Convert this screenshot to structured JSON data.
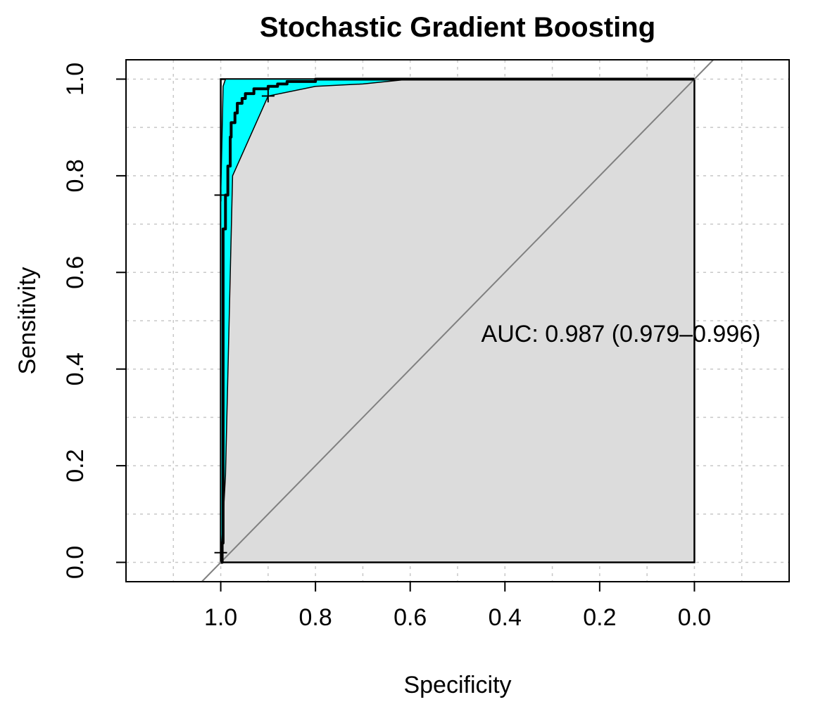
{
  "chart_data": {
    "type": "line",
    "title": "Stochastic Gradient Boosting",
    "xlabel": "Specificity",
    "ylabel": "Sensitivity",
    "x_reversed": true,
    "xlim": [
      1.2,
      -0.2
    ],
    "ylim": [
      -0.04,
      1.04
    ],
    "x_ticks": [
      "1.0",
      "0.8",
      "0.6",
      "0.4",
      "0.2",
      "0.0"
    ],
    "y_ticks": [
      "0.0",
      "0.2",
      "0.4",
      "0.6",
      "0.8",
      "1.0"
    ],
    "grid": true,
    "annotation": "AUC: 0.987 (0.979–0.996)",
    "chance_line": {
      "from": [
        1.0,
        0.0
      ],
      "to": [
        0.0,
        1.0
      ],
      "color": "#808080"
    },
    "colors": {
      "ci_band": "#00FFFF",
      "auc_fill": "#DCDCDC",
      "chance_line": "#808080",
      "roc": "#000000"
    },
    "series": [
      {
        "role": "roc_curve",
        "points": [
          [
            1.0,
            0.0
          ],
          [
            0.997,
            0.04
          ],
          [
            0.995,
            0.3
          ],
          [
            0.995,
            0.69
          ],
          [
            0.99,
            0.76
          ],
          [
            0.985,
            0.82
          ],
          [
            0.98,
            0.88
          ],
          [
            0.978,
            0.91
          ],
          [
            0.97,
            0.93
          ],
          [
            0.965,
            0.95
          ],
          [
            0.955,
            0.96
          ],
          [
            0.948,
            0.97
          ],
          [
            0.93,
            0.98
          ],
          [
            0.9,
            0.985
          ],
          [
            0.88,
            0.99
          ],
          [
            0.86,
            0.995
          ],
          [
            0.8,
            1.0
          ],
          [
            0.6,
            1.0
          ],
          [
            0.4,
            1.0
          ],
          [
            0.0,
            1.0
          ]
        ]
      },
      {
        "role": "ci_upper",
        "points": [
          [
            1.0,
            0.76
          ],
          [
            0.995,
            0.985
          ],
          [
            0.99,
            1.0
          ],
          [
            0.7,
            1.0
          ],
          [
            0.0,
            1.0
          ]
        ]
      },
      {
        "role": "ci_lower",
        "points": [
          [
            1.0,
            0.0
          ],
          [
            0.99,
            0.18
          ],
          [
            0.975,
            0.8
          ],
          [
            0.9,
            0.965
          ],
          [
            0.8,
            0.985
          ],
          [
            0.7,
            0.99
          ],
          [
            0.6,
            1.0
          ],
          [
            0.0,
            1.0
          ]
        ]
      }
    ],
    "threshold_marks": [
      [
        1.0,
        0.76
      ],
      [
        1.0,
        0.02
      ],
      [
        0.9,
        0.965
      ]
    ]
  }
}
